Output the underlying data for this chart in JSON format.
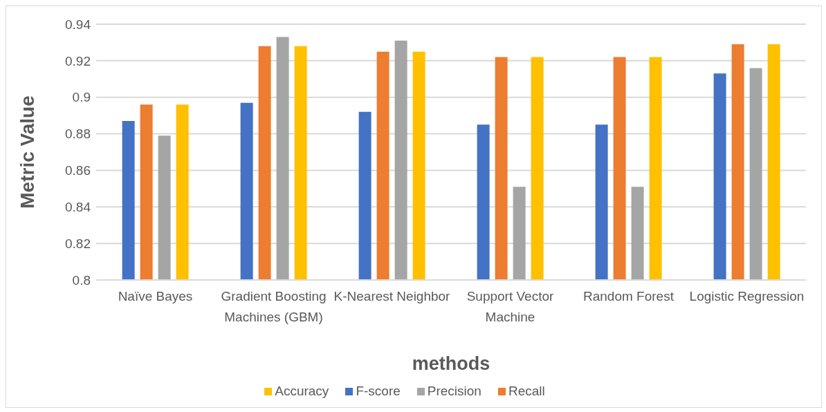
{
  "chart_data": {
    "type": "bar",
    "xlabel": "methods",
    "ylabel": "Metric Value",
    "categories": [
      "Naïve Bayes",
      "Gradient Boosting Machines (GBM)",
      "K-Nearest Neighbor",
      "Support Vector Machine",
      "Random Forest",
      "Logistic Regression"
    ],
    "series": [
      {
        "name": "F-score",
        "color": "#4472c4",
        "values": [
          0.887,
          0.897,
          0.892,
          0.885,
          0.885,
          0.913
        ]
      },
      {
        "name": "Recall",
        "color": "#ed7d31",
        "values": [
          0.896,
          0.928,
          0.925,
          0.922,
          0.922,
          0.929
        ]
      },
      {
        "name": "Precision",
        "color": "#a5a5a5",
        "values": [
          0.879,
          0.933,
          0.931,
          0.851,
          0.851,
          0.916
        ]
      },
      {
        "name": "Accuracy",
        "color": "#ffc000",
        "values": [
          0.896,
          0.928,
          0.925,
          0.922,
          0.922,
          0.929
        ]
      }
    ],
    "ylim": [
      0.8,
      0.94
    ],
    "yticks": [
      0.8,
      0.82,
      0.84,
      0.86,
      0.88,
      0.9,
      0.92,
      0.94
    ],
    "grid": "y",
    "legend": "bottom"
  }
}
